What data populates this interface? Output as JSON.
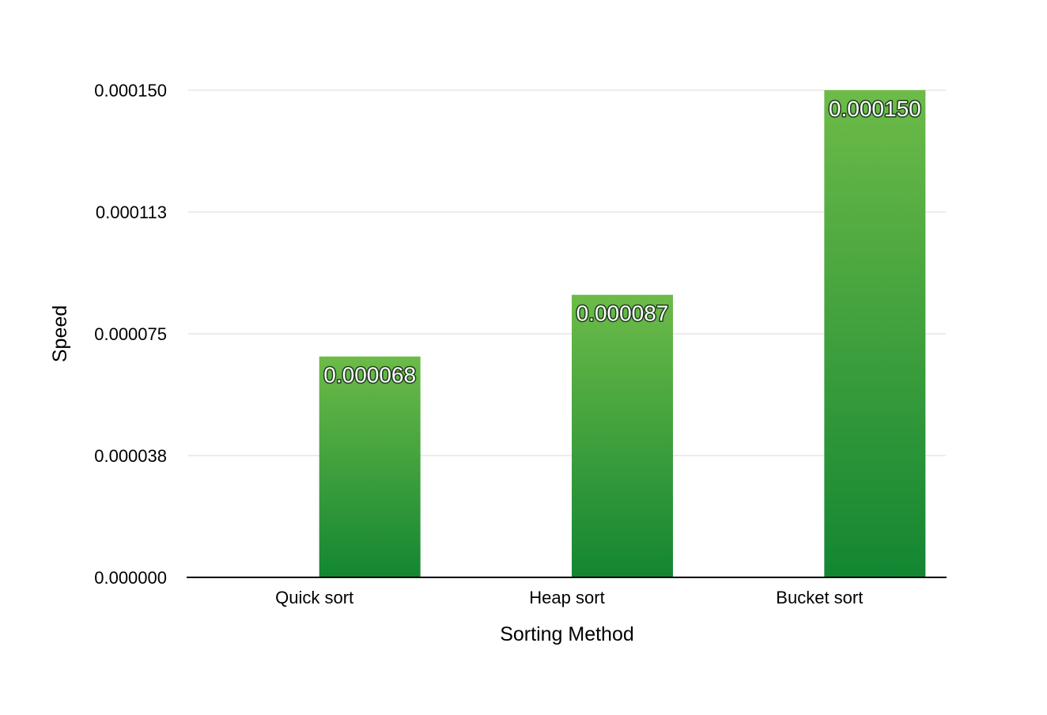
{
  "chart_data": {
    "type": "bar",
    "categories": [
      "Quick sort",
      "Heap sort",
      "Bucket sort"
    ],
    "values": [
      6.8e-05,
      8.7e-05,
      0.00015
    ],
    "data_labels": [
      "0.000068",
      "0.000087",
      "0.000150"
    ],
    "xlabel": "Sorting Method",
    "ylabel": "Speed",
    "ylim": [
      0,
      0.00015
    ],
    "yticks": [
      0,
      3.75e-05,
      7.5e-05,
      0.0001125,
      0.00015
    ],
    "ytick_labels": [
      "0.000000",
      "0.000038",
      "0.000075",
      "0.000113",
      "0.000150"
    ],
    "grid": true,
    "legend": "none",
    "colors": {
      "bar_top": "#6dbb48",
      "bar_bottom": "#138632",
      "gridline": "#d9d9d9",
      "baseline": "#000000"
    }
  }
}
